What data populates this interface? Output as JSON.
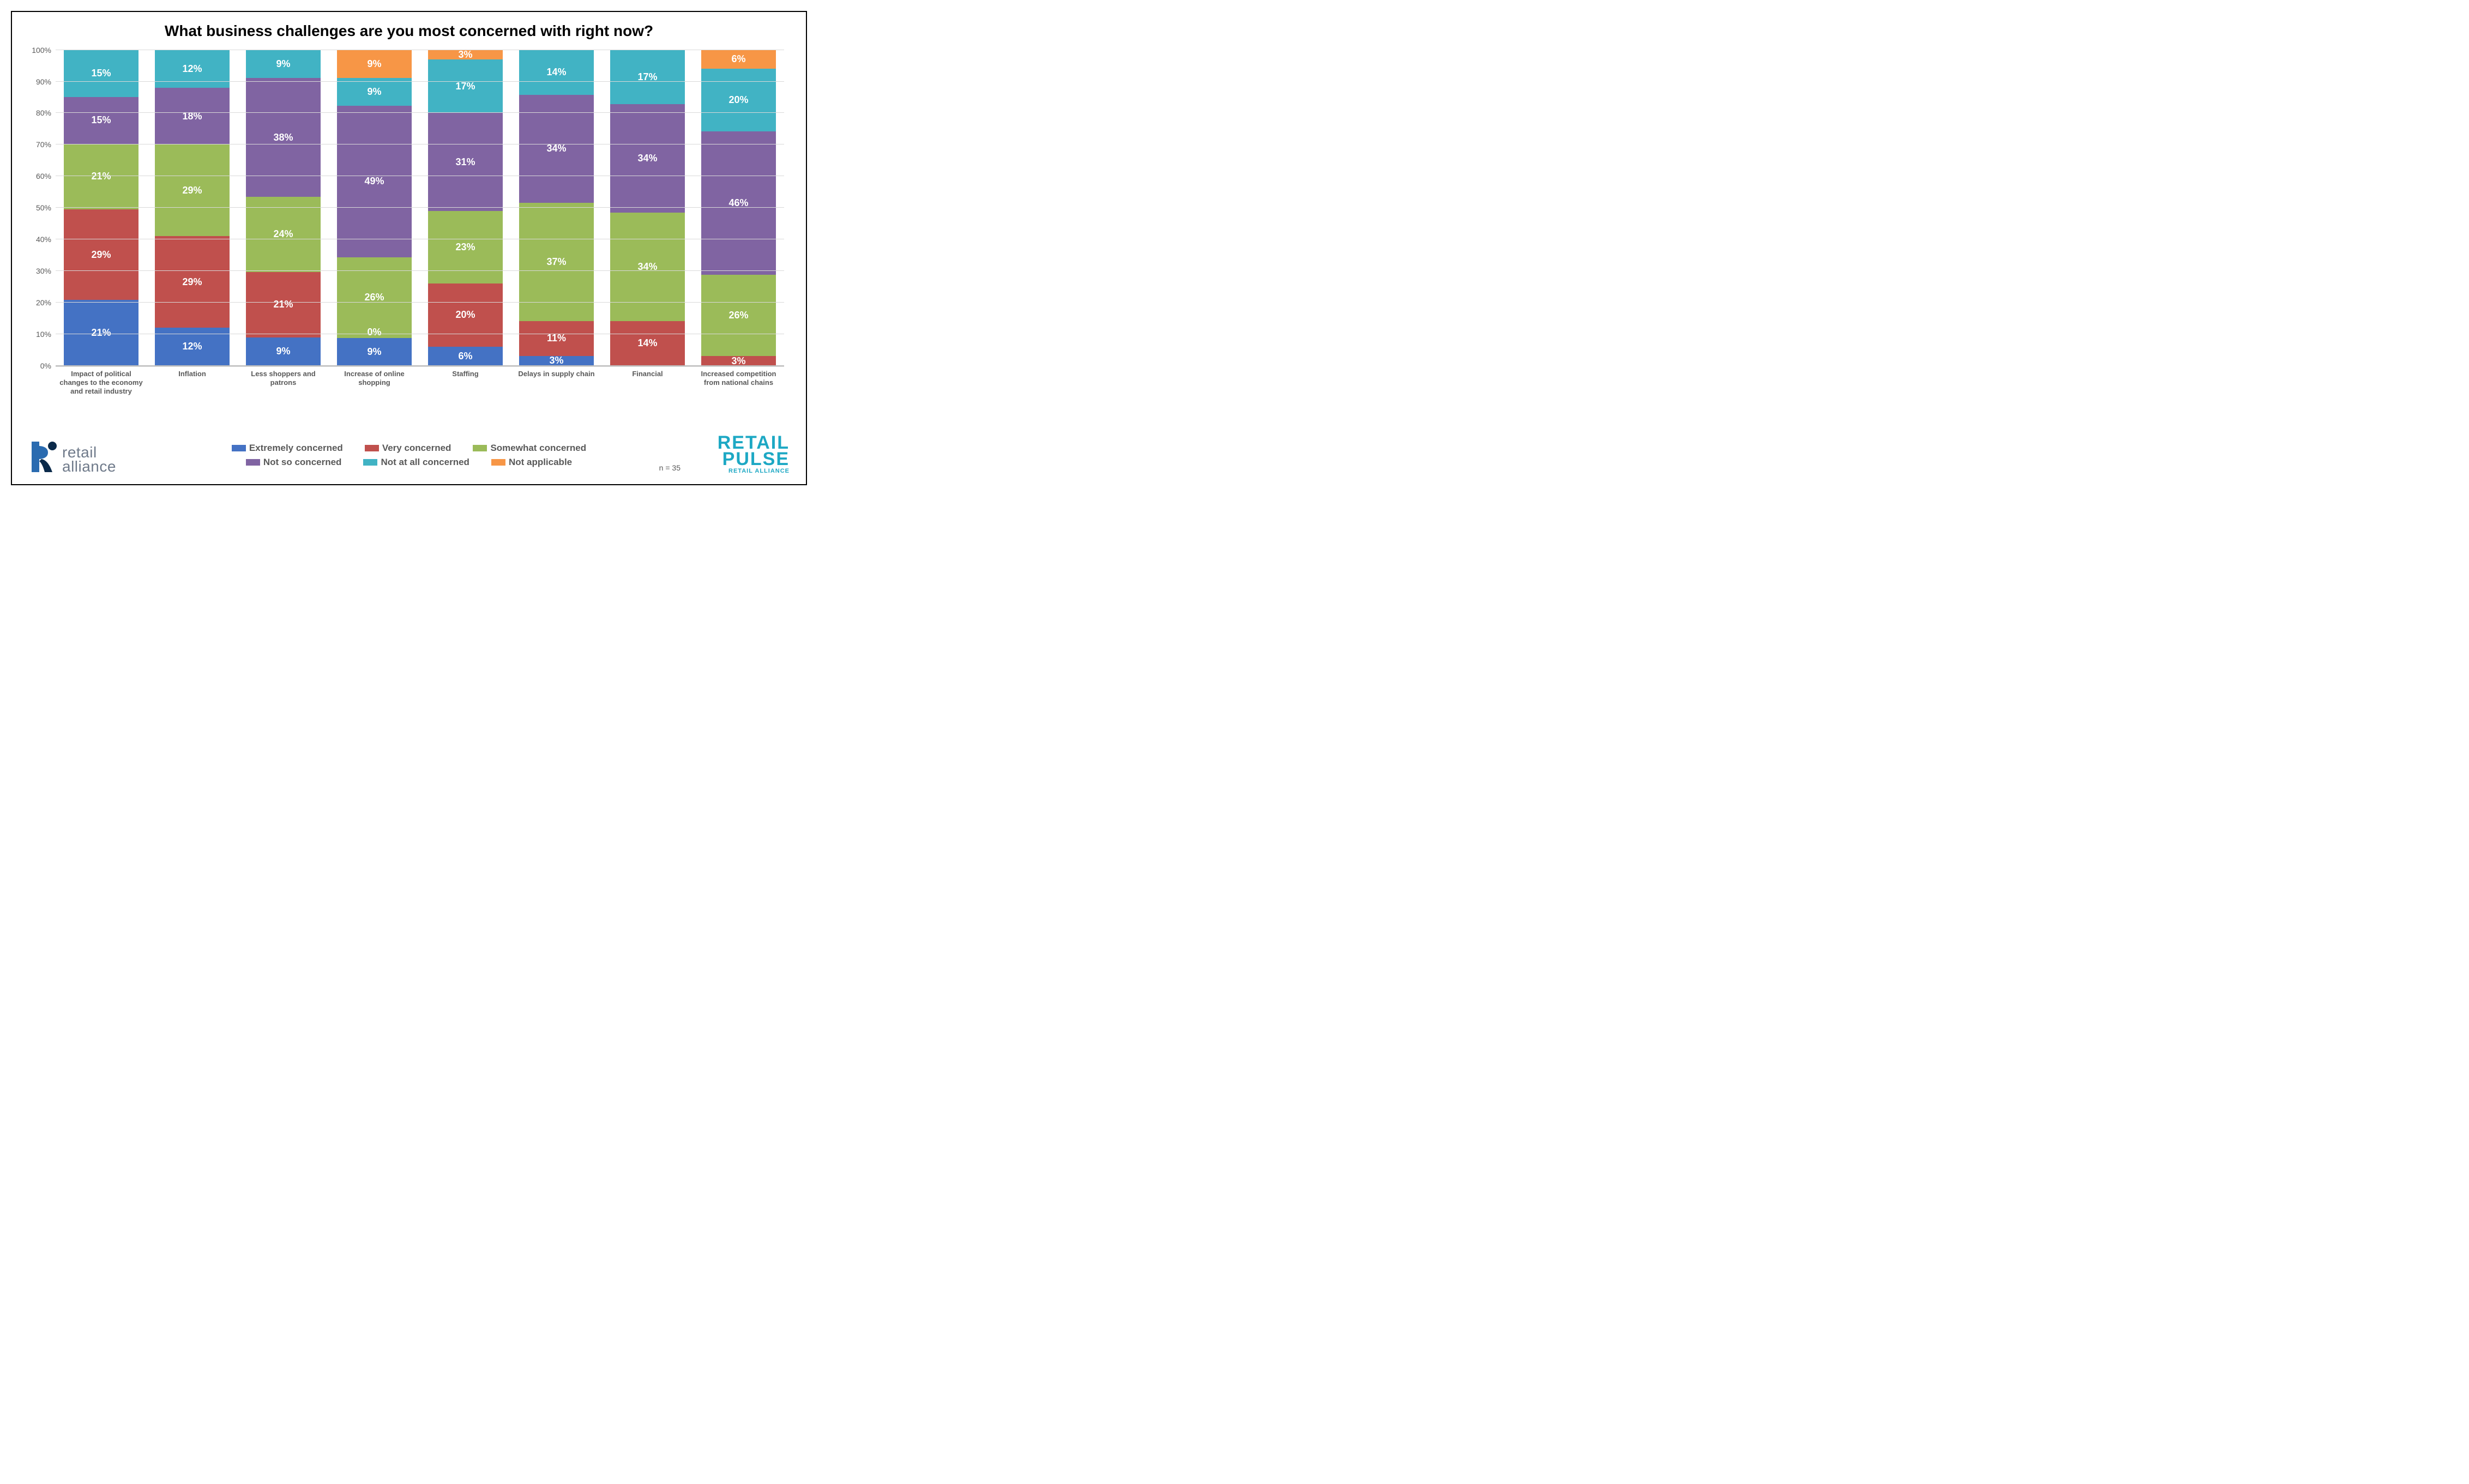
{
  "chart": {
    "type": "stacked-bar-100",
    "title": "What business challenges are you most concerned with right now?",
    "title_fontsize": 28,
    "background_color": "#ffffff",
    "border_color": "#000000",
    "grid_color": "#d9d9d9",
    "axis_font_color": "#595959",
    "label_fontsize": 13,
    "segment_label_fontsize": 18,
    "segment_label_color": "#ffffff",
    "ylim": [
      0,
      100
    ],
    "ytick_step": 10,
    "yticks": [
      "0%",
      "10%",
      "20%",
      "30%",
      "40%",
      "50%",
      "60%",
      "70%",
      "80%",
      "90%",
      "100%"
    ],
    "bar_width_ratio": 0.82,
    "categories": [
      "Impact of political changes to the economy and retail industry",
      "Inflation",
      "Less shoppers and patrons",
      "Increase of online shopping",
      "Staffing",
      "Delays in supply chain",
      "Financial",
      "Increased competition from national chains"
    ],
    "series": [
      {
        "name": "Extremely concerned",
        "color": "#4472c4"
      },
      {
        "name": "Very concerned",
        "color": "#c0504d"
      },
      {
        "name": "Somewhat concerned",
        "color": "#9bbb59"
      },
      {
        "name": "Not so concerned",
        "color": "#8064a2"
      },
      {
        "name": "Not at all concerned",
        "color": "#41b3c4"
      },
      {
        "name": "Not applicable",
        "color": "#f79646"
      }
    ],
    "segment_labels": [
      [
        "21%",
        "29%",
        "21%",
        "15%",
        "15%",
        ""
      ],
      [
        "12%",
        "29%",
        "29%",
        "18%",
        "12%",
        ""
      ],
      [
        "9%",
        "21%",
        "24%",
        "38%",
        "9%",
        ""
      ],
      [
        "9%",
        "0%",
        "26%",
        "49%",
        "9%",
        "9%"
      ],
      [
        "6%",
        "20%",
        "23%",
        "31%",
        "17%",
        "3%"
      ],
      [
        "3%",
        "11%",
        "37%",
        "34%",
        "14%",
        ""
      ],
      [
        "",
        "14%",
        "34%",
        "34%",
        "17%",
        ""
      ],
      [
        "",
        "3%",
        "26%",
        "46%",
        "20%",
        "6%"
      ]
    ],
    "segment_values": [
      [
        21,
        29,
        21,
        15,
        15,
        0
      ],
      [
        12,
        29,
        29,
        18,
        12,
        0
      ],
      [
        9,
        21,
        24,
        38,
        9,
        0
      ],
      [
        9,
        0,
        26,
        49,
        9,
        9
      ],
      [
        6,
        20,
        23,
        31,
        17,
        3
      ],
      [
        3,
        11,
        37,
        34,
        14,
        0
      ],
      [
        0,
        14,
        34,
        34,
        17,
        0
      ],
      [
        0,
        3,
        26,
        46,
        20,
        6
      ]
    ],
    "special_label_overflow": {
      "bar": 3,
      "series": 1
    },
    "n_note": "n = 35",
    "legend_fontsize": 17
  },
  "logo_left": {
    "line1": "retail",
    "line2": "alliance",
    "mark_color_blue": "#2a6bb0",
    "mark_color_navy": "#0b2a4a",
    "text_color": "#6f7a8a"
  },
  "logo_right": {
    "line1": "RETAIL",
    "line2": "PULSE",
    "line3": "RETAIL ALLIANCE",
    "color": "#1da8c4"
  }
}
